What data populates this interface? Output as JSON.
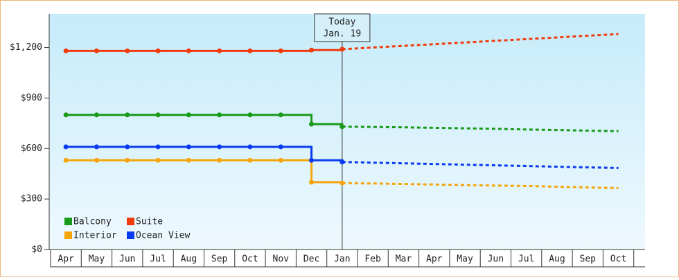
{
  "chart_data": {
    "type": "line",
    "categories": [
      "Apr",
      "May",
      "Jun",
      "Jul",
      "Aug",
      "Sep",
      "Oct",
      "Nov",
      "Dec",
      "Jan",
      "Feb",
      "Mar",
      "Apr",
      "May",
      "Jun",
      "Jul",
      "Aug",
      "Sep",
      "Oct"
    ],
    "ylim": [
      0,
      1400
    ],
    "yticks": [
      {
        "value": 0,
        "label": "$0"
      },
      {
        "value": 300,
        "label": "$300"
      },
      {
        "value": 600,
        "label": "$600"
      },
      {
        "value": 900,
        "label": "$900"
      },
      {
        "value": 1200,
        "label": "$1,200"
      }
    ],
    "annotation": [
      "Today",
      "Jan. 19"
    ],
    "legend": "lower left",
    "series": [
      {
        "name": "Balcony",
        "color": "#1a9a1a",
        "values": [
          800,
          800,
          800,
          800,
          800,
          800,
          800,
          800,
          745,
          730,
          null,
          null,
          null,
          null,
          null,
          null,
          null,
          null,
          null
        ],
        "forecast": [
          null,
          null,
          null,
          null,
          null,
          null,
          null,
          null,
          null,
          730,
          728,
          726,
          723,
          720,
          717,
          713,
          710,
          706,
          703
        ]
      },
      {
        "name": "Suite",
        "color": "#f03c0c",
        "values": [
          1180,
          1180,
          1180,
          1180,
          1180,
          1180,
          1180,
          1180,
          1185,
          1190,
          null,
          null,
          null,
          null,
          null,
          null,
          null,
          null,
          null
        ],
        "forecast": [
          null,
          null,
          null,
          null,
          null,
          null,
          null,
          null,
          null,
          1190,
          1200,
          1210,
          1220,
          1230,
          1240,
          1250,
          1260,
          1270,
          1280
        ]
      },
      {
        "name": "Interior",
        "color": "#f5a50a",
        "values": [
          530,
          530,
          530,
          530,
          530,
          530,
          530,
          530,
          400,
          395,
          null,
          null,
          null,
          null,
          null,
          null,
          null,
          null,
          null
        ],
        "forecast": [
          null,
          null,
          null,
          null,
          null,
          null,
          null,
          null,
          null,
          395,
          392,
          389,
          386,
          383,
          380,
          377,
          373,
          369,
          365
        ]
      },
      {
        "name": "Ocean View",
        "color": "#0a3af0",
        "values": [
          610,
          610,
          610,
          610,
          610,
          610,
          610,
          610,
          530,
          520,
          null,
          null,
          null,
          null,
          null,
          null,
          null,
          null,
          null
        ],
        "forecast": [
          null,
          null,
          null,
          null,
          null,
          null,
          null,
          null,
          null,
          520,
          516,
          512,
          508,
          504,
          500,
          496,
          492,
          488,
          484
        ]
      }
    ]
  }
}
